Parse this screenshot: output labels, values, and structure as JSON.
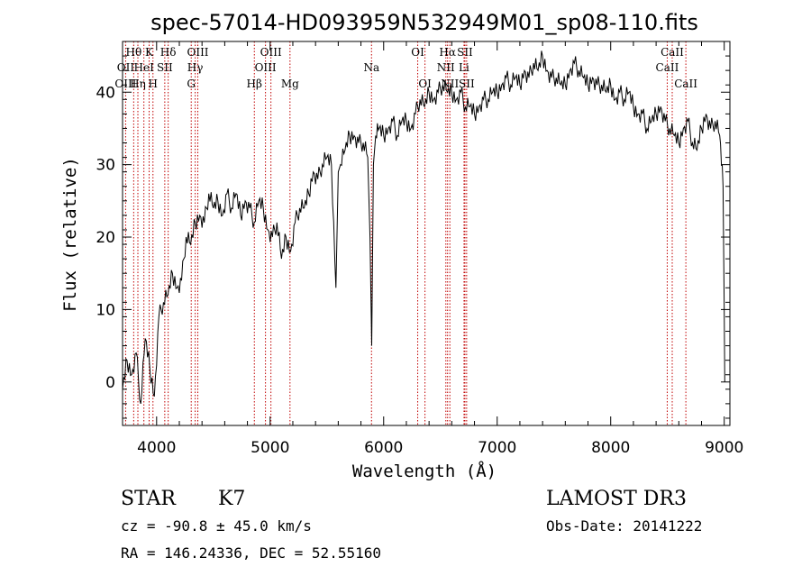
{
  "chart_data": {
    "type": "line",
    "title": "spec-57014-HD093959N532949M01_sp08-110.fits",
    "xlabel": "Wavelength (Å)",
    "ylabel": "Flux (relative)",
    "xlim": [
      3700,
      9050
    ],
    "ylim": [
      -6,
      47
    ],
    "xticks": [
      4000,
      5000,
      6000,
      7000,
      8000,
      9000
    ],
    "yticks": [
      0,
      10,
      20,
      30,
      40
    ],
    "grid": false,
    "series": [
      {
        "x": [
          3700,
          3740,
          3780,
          3820,
          3860,
          3900,
          3940,
          3980,
          4020,
          4060,
          4100,
          4140,
          4180,
          4220,
          4260,
          4300,
          4340,
          4380,
          4420,
          4460,
          4500,
          4540,
          4580,
          4620,
          4660,
          4700,
          4740,
          4780,
          4820,
          4860,
          4900,
          4940,
          4980,
          5020,
          5060,
          5100,
          5140,
          5180,
          5220,
          5260,
          5300,
          5340,
          5380,
          5420,
          5460,
          5500,
          5540,
          5580,
          5600,
          5620,
          5660,
          5700,
          5740,
          5780,
          5820,
          5860,
          5880,
          5895,
          5910,
          5930,
          5960,
          6000,
          6040,
          6080,
          6120,
          6160,
          6200,
          6240,
          6280,
          6320,
          6360,
          6400,
          6440,
          6480,
          6520,
          6563,
          6600,
          6640,
          6680,
          6720,
          6760,
          6800,
          6840,
          6880,
          6920,
          6960,
          7000,
          7040,
          7080,
          7120,
          7160,
          7200,
          7240,
          7280,
          7320,
          7360,
          7400,
          7440,
          7480,
          7520,
          7560,
          7600,
          7640,
          7680,
          7720,
          7760,
          7800,
          7840,
          7880,
          7920,
          7960,
          8000,
          8040,
          8080,
          8120,
          8160,
          8200,
          8240,
          8280,
          8320,
          8360,
          8400,
          8440,
          8480,
          8520,
          8560,
          8600,
          8640,
          8680,
          8720,
          8760,
          8800,
          8840,
          8880,
          8920,
          8960,
          8990,
          9000,
          9005
        ],
        "y": [
          -1,
          3,
          1,
          4,
          -3,
          6,
          2,
          -2,
          9,
          11,
          12,
          15,
          13,
          14,
          20,
          19,
          22,
          23,
          22,
          26,
          24,
          25,
          23,
          26,
          24,
          26,
          23,
          25,
          24,
          22,
          25,
          24,
          21,
          20,
          22,
          17,
          20,
          18,
          22,
          24,
          24,
          26,
          29,
          28,
          30,
          31,
          30,
          13,
          29,
          30,
          32,
          34,
          34,
          33,
          33,
          31,
          20,
          5,
          30,
          34,
          35,
          34,
          35,
          36,
          34,
          36,
          36,
          35,
          37,
          39,
          38,
          40,
          39,
          40,
          41,
          40,
          40,
          39,
          40,
          38,
          38,
          37,
          38,
          39,
          39,
          40,
          40,
          41,
          42,
          41,
          42,
          41,
          43,
          42,
          44,
          43,
          45,
          43,
          42,
          42,
          41,
          41,
          43,
          44,
          43,
          42,
          41,
          42,
          41,
          41,
          40,
          41,
          39,
          40,
          39,
          40,
          38,
          37,
          37,
          35,
          36,
          37,
          38,
          36,
          35,
          34,
          33,
          35,
          36,
          33,
          32,
          35,
          37,
          35,
          36,
          34,
          27,
          10,
          0
        ]
      }
    ],
    "annotations": [
      {
        "label": "Hθ",
        "x": 3798,
        "row": 0
      },
      {
        "label": "K",
        "x": 3934,
        "row": 0
      },
      {
        "label": "Hδ",
        "x": 4102,
        "row": 0
      },
      {
        "label": "OIII",
        "x": 4363,
        "row": 0
      },
      {
        "label": "OIII",
        "x": 5007,
        "row": 0
      },
      {
        "label": "OI",
        "x": 6300,
        "row": 0
      },
      {
        "label": "Hα",
        "x": 6563,
        "row": 0
      },
      {
        "label": "SII",
        "x": 6716,
        "row": 0
      },
      {
        "label": "CaII",
        "x": 8542,
        "row": 0
      },
      {
        "label": "OII",
        "x": 3727,
        "row": 1
      },
      {
        "label": "HeI",
        "x": 3888,
        "row": 1
      },
      {
        "label": "SII",
        "x": 4072,
        "row": 1
      },
      {
        "label": "Hγ",
        "x": 4340,
        "row": 1
      },
      {
        "label": "OIII",
        "x": 4959,
        "row": 1
      },
      {
        "label": "Na",
        "x": 5893,
        "row": 1
      },
      {
        "label": "NII",
        "x": 6548,
        "row": 1
      },
      {
        "label": "Li",
        "x": 6708,
        "row": 1
      },
      {
        "label": "CaII",
        "x": 8498,
        "row": 1
      },
      {
        "label": "OIII",
        "x": 3727,
        "row": 2
      },
      {
        "label": "Hη",
        "x": 3835,
        "row": 2
      },
      {
        "label": "H",
        "x": 3968,
        "row": 2
      },
      {
        "label": "G",
        "x": 4305,
        "row": 2
      },
      {
        "label": "Hβ",
        "x": 4861,
        "row": 2
      },
      {
        "label": "Mg",
        "x": 5175,
        "row": 2
      },
      {
        "label": "OI",
        "x": 6364,
        "row": 2
      },
      {
        "label": "NII",
        "x": 6583,
        "row": 2
      },
      {
        "label": "SII",
        "x": 6731,
        "row": 2
      },
      {
        "label": "CaII",
        "x": 8662,
        "row": 2
      }
    ],
    "line_markers": [
      3727,
      3798,
      3835,
      3888,
      3934,
      3968,
      4072,
      4102,
      4305,
      4340,
      4363,
      4861,
      4959,
      5007,
      5175,
      5893,
      6300,
      6364,
      6548,
      6563,
      6583,
      6708,
      6716,
      6731,
      8498,
      8542,
      8662
    ],
    "line_color": "#000000",
    "marker_color": "#c00000"
  },
  "info": {
    "object_type": "STAR",
    "subclass": "K7",
    "survey": "LAMOST DR3",
    "cz": "cz = -90.8 ± 45.0 km/s",
    "obs_date": "Obs-Date: 20141222",
    "coords": "RA = 146.24336, DEC =  52.55160"
  }
}
